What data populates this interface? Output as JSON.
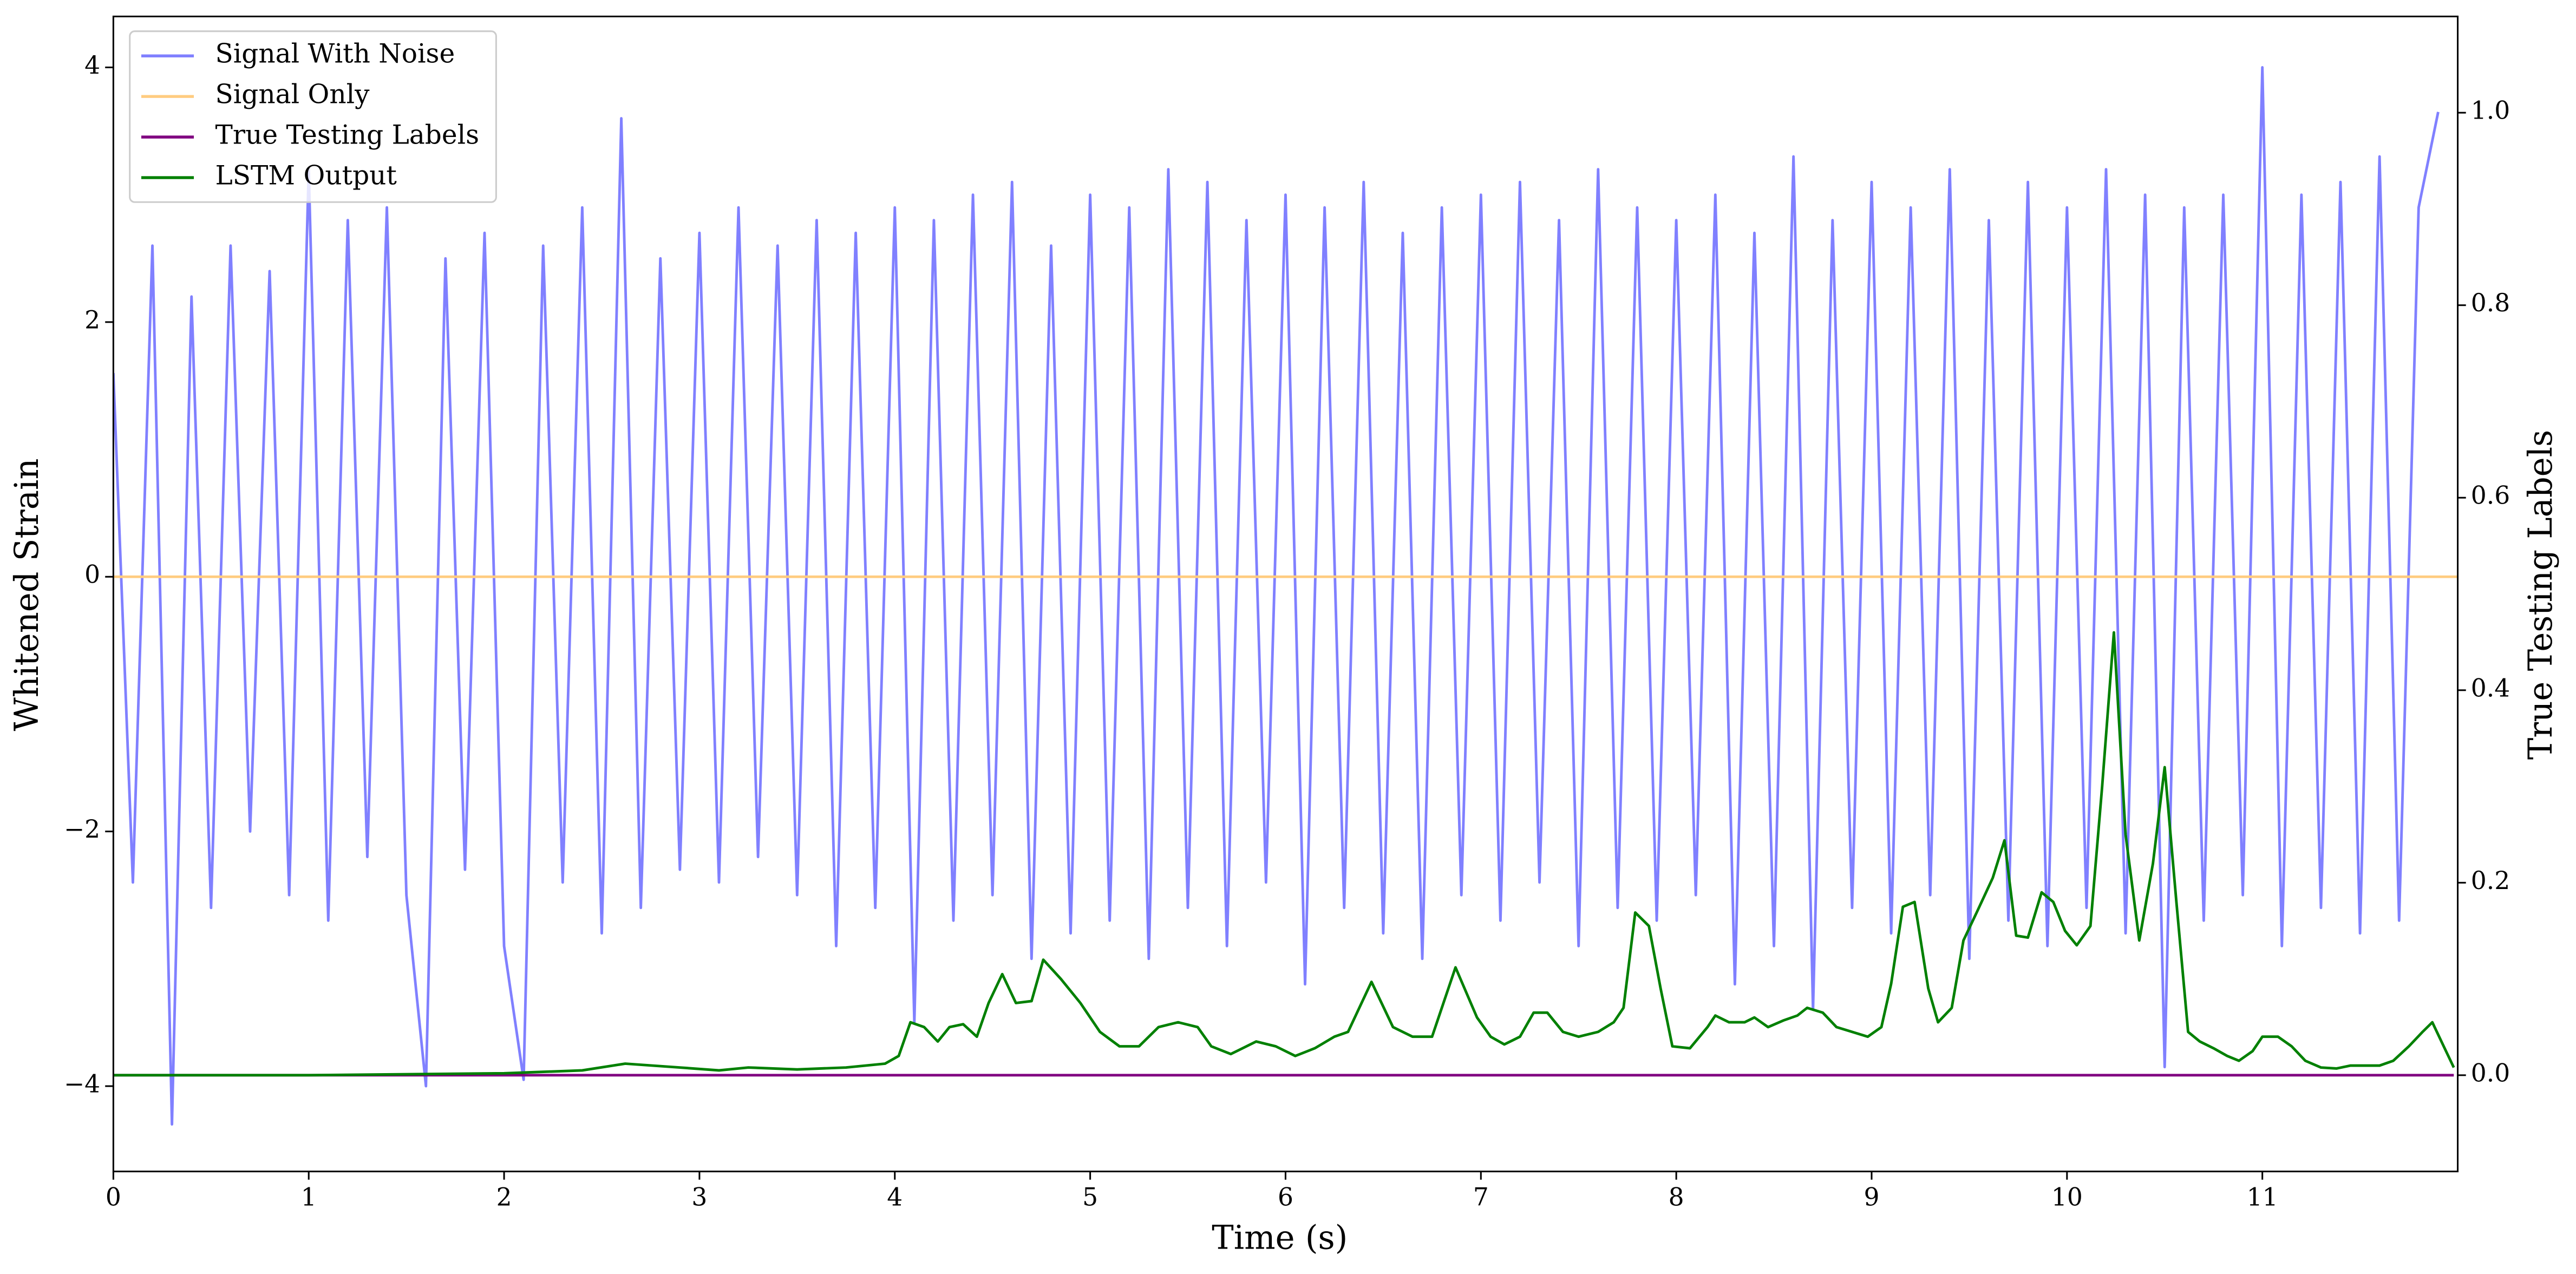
{
  "chart_data": {
    "type": "line",
    "xlabel": "Time (s)",
    "ylabel": "Whitened Strain",
    "y2label": "True Testing Labels",
    "xlim": [
      0,
      12
    ],
    "xticks": [
      0,
      1,
      2,
      3,
      4,
      5,
      6,
      7,
      8,
      9,
      10,
      11
    ],
    "ylim": [
      -4.67,
      4.4
    ],
    "yticks": [
      {
        "value": -4,
        "label": "−4"
      },
      {
        "value": -2,
        "label": "−2"
      },
      0,
      2,
      4
    ],
    "y2lim": [
      -0.1,
      1.1
    ],
    "y2ticks": [
      {
        "value": 0,
        "label": "0.0"
      },
      0.2,
      0.4,
      0.6,
      0.8,
      {
        "value": 1,
        "label": "1.0"
      }
    ],
    "legend": "upper left",
    "series": [
      {
        "name": "Signal With Noise",
        "color": "#8080ff",
        "axis": "y",
        "x": [
          0,
          0.1,
          0.2,
          0.3,
          0.4,
          0.5,
          0.6,
          0.7,
          0.8,
          0.9,
          1,
          1.1,
          1.2,
          1.3,
          1.4,
          1.5,
          1.6,
          1.7,
          1.8,
          1.9,
          2,
          2.1,
          2.2,
          2.3,
          2.4,
          2.5,
          2.6,
          2.7,
          2.8,
          2.9,
          3,
          3.1,
          3.2,
          3.3,
          3.4,
          3.5,
          3.6,
          3.7,
          3.8,
          3.9,
          4,
          4.1,
          4.2,
          4.3,
          4.4,
          4.5,
          4.6,
          4.7,
          4.8,
          4.9,
          5,
          5.1,
          5.2,
          5.3,
          5.4,
          5.5,
          5.6,
          5.7,
          5.8,
          5.9,
          6,
          6.1,
          6.2,
          6.3,
          6.4,
          6.5,
          6.6,
          6.7,
          6.8,
          6.9,
          7,
          7.1,
          7.2,
          7.3,
          7.4,
          7.5,
          7.6,
          7.7,
          7.8,
          7.9,
          8,
          8.1,
          8.2,
          8.3,
          8.4,
          8.5,
          8.6,
          8.7,
          8.8,
          8.9,
          9,
          9.1,
          9.2,
          9.3,
          9.4,
          9.5,
          9.6,
          9.7,
          9.8,
          9.9,
          10,
          10.1,
          10.2,
          10.3,
          10.4,
          10.5,
          10.6,
          10.7,
          10.8,
          10.9,
          11,
          11.1,
          11.2,
          11.3,
          11.4,
          11.5,
          11.6,
          11.7,
          11.8,
          11.9
        ],
        "values": [
          1.6,
          -2.4,
          2.6,
          -4.3,
          2.2,
          -2.6,
          2.6,
          -2.0,
          2.4,
          -2.5,
          3.2,
          -2.7,
          2.8,
          -2.2,
          2.9,
          -2.5,
          -4.0,
          2.5,
          -2.3,
          2.7,
          -2.9,
          -3.95,
          2.6,
          -2.4,
          2.9,
          -2.8,
          3.6,
          -2.6,
          2.5,
          -2.3,
          2.7,
          -2.4,
          2.9,
          -2.2,
          2.6,
          -2.5,
          2.8,
          -2.9,
          2.7,
          -2.6,
          2.9,
          -3.5,
          2.8,
          -2.7,
          3.0,
          -2.5,
          3.1,
          -3.0,
          2.6,
          -2.8,
          3.0,
          -2.7,
          2.9,
          -3.0,
          3.2,
          -2.6,
          3.1,
          -2.9,
          2.8,
          -2.4,
          3.0,
          -3.2,
          2.9,
          -2.6,
          3.1,
          -2.8,
          2.7,
          -3.0,
          2.9,
          -2.5,
          3.0,
          -2.7,
          3.1,
          -2.4,
          2.8,
          -2.9,
          3.2,
          -2.6,
          2.9,
          -2.7,
          2.8,
          -2.5,
          3.0,
          -3.2,
          2.7,
          -2.9,
          3.3,
          -3.4,
          2.8,
          -2.6,
          3.1,
          -2.8,
          2.9,
          -2.5,
          3.2,
          -3.0,
          2.8,
          -2.7,
          3.1,
          -2.9,
          2.9,
          -2.6,
          3.2,
          -2.8,
          3.0,
          -3.85,
          2.9,
          -2.7,
          3.0,
          -2.5,
          4.0,
          -2.9,
          3.0,
          -2.6,
          3.1,
          -2.8,
          3.3,
          -2.7,
          2.9,
          3.65
        ]
      },
      {
        "name": "Signal Only",
        "color": "#ffcc80",
        "axis": "y",
        "x": [
          0,
          12
        ],
        "values": [
          0,
          0
        ]
      },
      {
        "name": "True Testing Labels",
        "color": "#800080",
        "axis": "y2",
        "x": [
          0,
          11.98
        ],
        "values": [
          0,
          0
        ]
      },
      {
        "name": "LSTM Output",
        "color": "#008000",
        "axis": "y2",
        "x": [
          0,
          1,
          2,
          2.4,
          2.62,
          2.9,
          3.1,
          3.25,
          3.5,
          3.75,
          3.95,
          4.02,
          4.08,
          4.15,
          4.22,
          4.28,
          4.35,
          4.42,
          4.48,
          4.55,
          4.62,
          4.7,
          4.76,
          4.85,
          4.95,
          5.05,
          5.15,
          5.25,
          5.35,
          5.45,
          5.55,
          5.62,
          5.72,
          5.85,
          5.95,
          6.05,
          6.15,
          6.25,
          6.32,
          6.44,
          6.55,
          6.65,
          6.75,
          6.87,
          6.98,
          7.05,
          7.12,
          7.2,
          7.27,
          7.34,
          7.42,
          7.5,
          7.6,
          7.68,
          7.73,
          7.79,
          7.86,
          7.92,
          7.98,
          8.07,
          8.16,
          8.2,
          8.27,
          8.35,
          8.4,
          8.47,
          8.55,
          8.62,
          8.67,
          8.75,
          8.82,
          8.9,
          8.98,
          9.05,
          9.1,
          9.16,
          9.22,
          9.29,
          9.34,
          9.41,
          9.47,
          9.54,
          9.62,
          9.68,
          9.74,
          9.8,
          9.87,
          9.93,
          9.99,
          10.05,
          10.12,
          10.18,
          10.24,
          10.3,
          10.37,
          10.44,
          10.5,
          10.56,
          10.62,
          10.68,
          10.75,
          10.82,
          10.88,
          10.95,
          11,
          11.08,
          11.15,
          11.22,
          11.3,
          11.38,
          11.45,
          11.52,
          11.6,
          11.67,
          11.75,
          11.82,
          11.87,
          11.94,
          11.98
        ],
        "values": [
          0,
          0,
          0.002,
          0.005,
          0.012,
          0.008,
          0.005,
          0.008,
          0.006,
          0.008,
          0.012,
          0.02,
          0.055,
          0.05,
          0.035,
          0.05,
          0.053,
          0.04,
          0.075,
          0.105,
          0.075,
          0.077,
          0.12,
          0.1,
          0.075,
          0.045,
          0.03,
          0.03,
          0.05,
          0.055,
          0.05,
          0.03,
          0.022,
          0.035,
          0.03,
          0.02,
          0.028,
          0.04,
          0.045,
          0.097,
          0.05,
          0.04,
          0.04,
          0.112,
          0.06,
          0.04,
          0.032,
          0.04,
          0.065,
          0.065,
          0.045,
          0.04,
          0.045,
          0.055,
          0.07,
          0.169,
          0.155,
          0.09,
          0.03,
          0.028,
          0.05,
          0.062,
          0.055,
          0.055,
          0.06,
          0.05,
          0.057,
          0.062,
          0.07,
          0.065,
          0.05,
          0.045,
          0.04,
          0.05,
          0.095,
          0.175,
          0.18,
          0.09,
          0.055,
          0.07,
          0.14,
          0.17,
          0.205,
          0.244,
          0.145,
          0.143,
          0.19,
          0.18,
          0.15,
          0.135,
          0.155,
          0.3,
          0.46,
          0.25,
          0.14,
          0.22,
          0.32,
          0.18,
          0.045,
          0.035,
          0.028,
          0.02,
          0.015,
          0.025,
          0.04,
          0.04,
          0.03,
          0.015,
          0.008,
          0.007,
          0.01,
          0.01,
          0.01,
          0.015,
          0.03,
          0.045,
          0.055,
          0.025,
          0.008
        ]
      }
    ]
  }
}
